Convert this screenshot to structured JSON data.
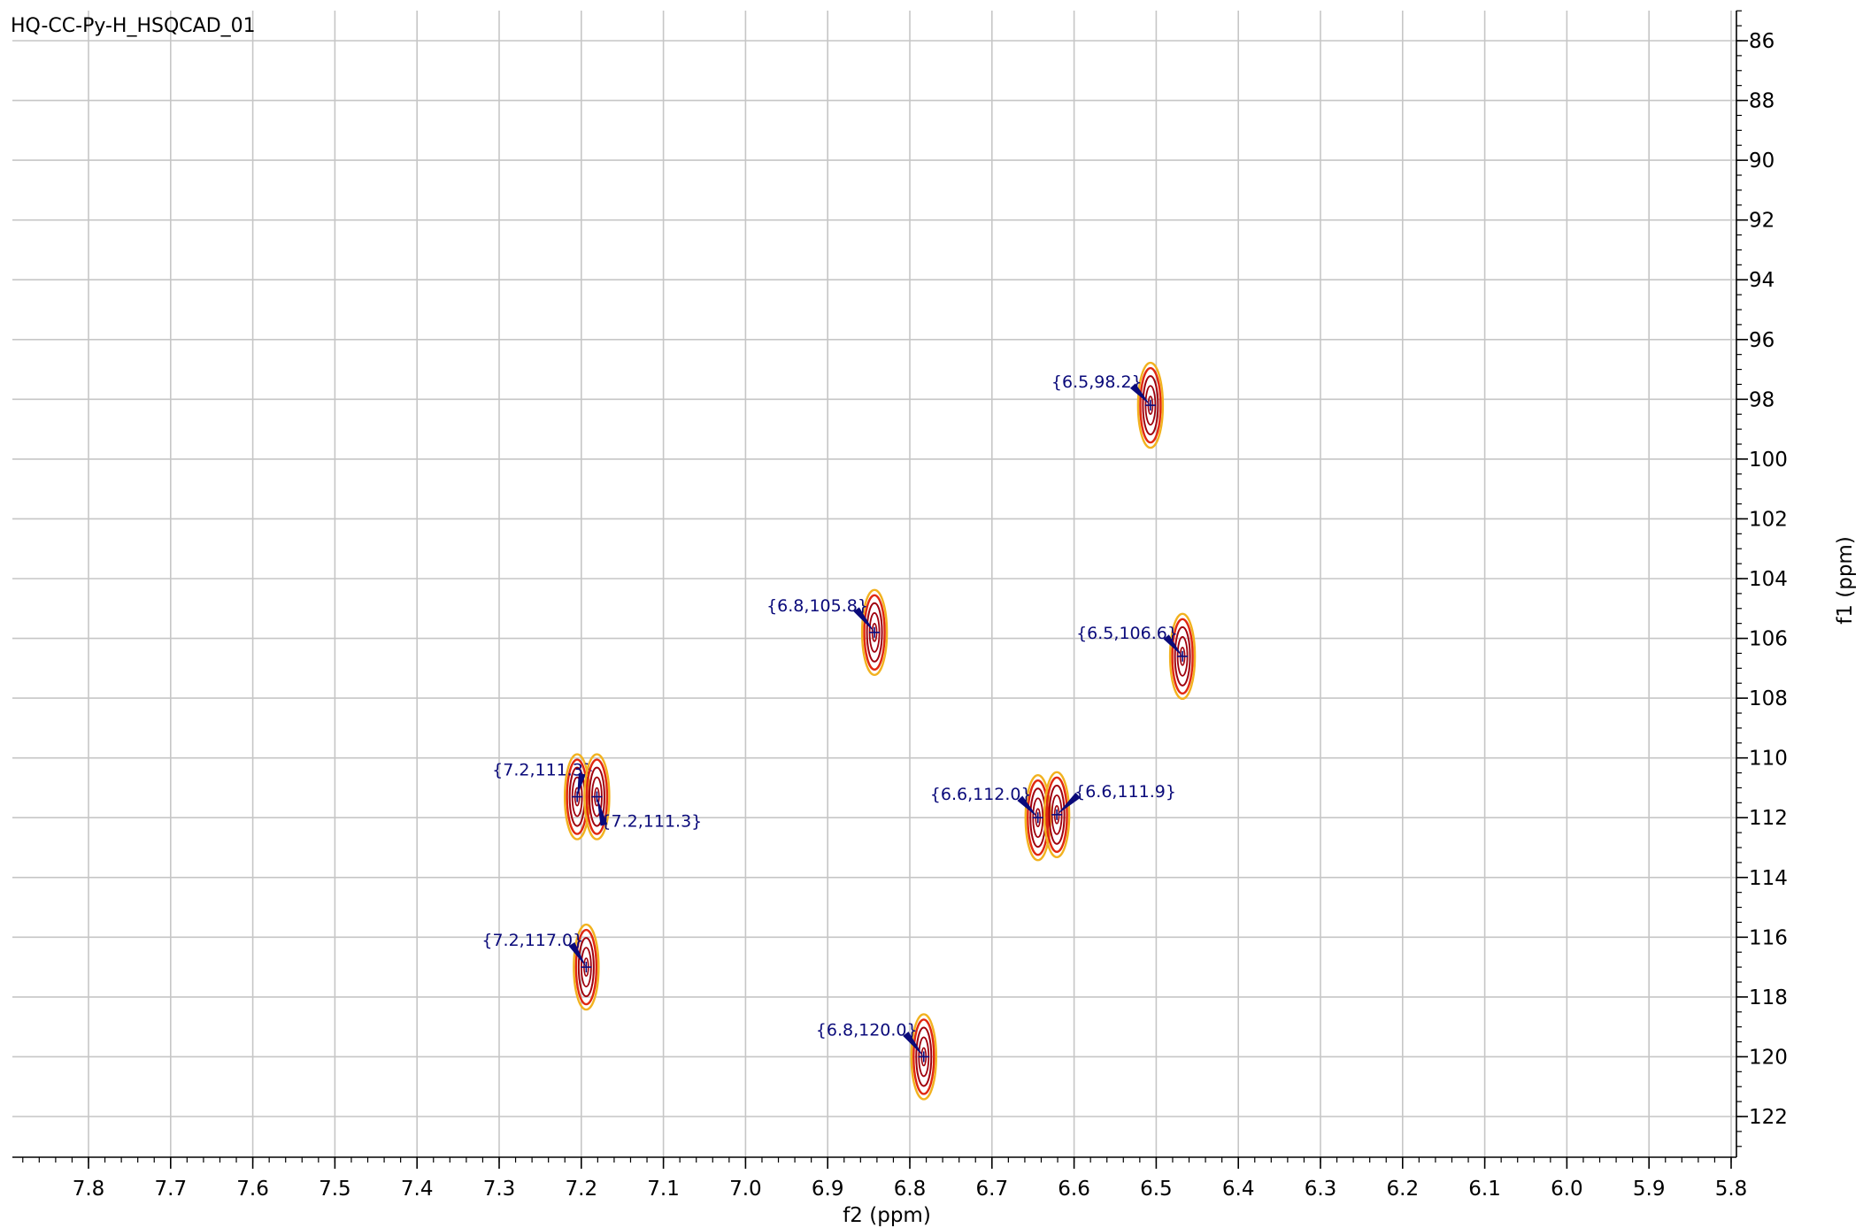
{
  "title": "HQ-CC-Py-H_HSQCAD_01",
  "chart_data": {
    "type": "scatter",
    "title": "HQ-CC-Py-H_HSQCAD_01",
    "xlabel": "f2 (ppm)",
    "ylabel": "f1 (ppm)",
    "x_reversed": true,
    "y_reversed": true,
    "xlim": [
      7.9,
      5.8
    ],
    "ylim": [
      85,
      123
    ],
    "x_ticks": [
      "7.8",
      "7.7",
      "7.6",
      "7.5",
      "7.4",
      "7.3",
      "7.2",
      "7.1",
      "7.0",
      "6.9",
      "6.8",
      "6.7",
      "6.6",
      "6.5",
      "6.4",
      "6.3",
      "6.2",
      "6.1",
      "6.0",
      "5.9",
      "5.8"
    ],
    "y_ticks": [
      "86",
      "88",
      "90",
      "92",
      "94",
      "96",
      "98",
      "100",
      "102",
      "104",
      "106",
      "108",
      "110",
      "112",
      "114",
      "116",
      "118",
      "120",
      "122"
    ],
    "grid": true,
    "contour_colors": [
      "#f2b21f",
      "#e02810",
      "#a0000c"
    ],
    "peaks": [
      {
        "x": 6.507,
        "y": 98.2,
        "label": "{6.5,98.2}"
      },
      {
        "x": 6.843,
        "y": 105.8,
        "label": "{6.8,105.8}"
      },
      {
        "x": 6.468,
        "y": 106.6,
        "label": "{6.5,106.6}"
      },
      {
        "x": 7.205,
        "y": 111.3,
        "label": "{7.2,111.3}"
      },
      {
        "x": 7.181,
        "y": 111.3,
        "label": "{7.2,111.3}"
      },
      {
        "x": 6.644,
        "y": 112.0,
        "label": "{6.6,112.0}"
      },
      {
        "x": 6.621,
        "y": 111.9,
        "label": "{6.6,111.9}"
      },
      {
        "x": 7.194,
        "y": 117.0,
        "label": "{7.2,117.0}"
      },
      {
        "x": 6.783,
        "y": 120.0,
        "label": "{6.8,120.0}"
      }
    ]
  }
}
